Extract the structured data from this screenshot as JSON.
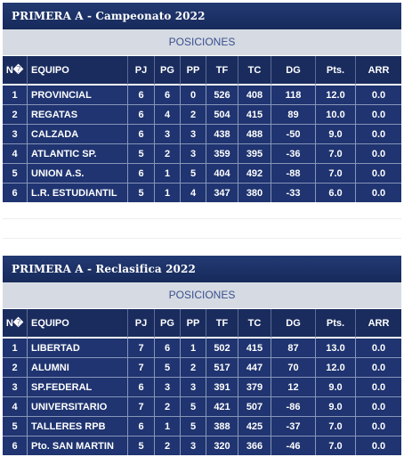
{
  "tables": [
    {
      "title": "PRIMERA A - Campeonato 2022",
      "section": "POSICIONES",
      "headers": [
        "N�",
        "EQUIPO",
        "PJ",
        "PG",
        "PP",
        "TF",
        "TC",
        "DG",
        "Pts.",
        "ARR"
      ],
      "rows": [
        [
          "1",
          "PROVINCIAL",
          "6",
          "6",
          "0",
          "526",
          "408",
          "118",
          "12.0",
          "0.0"
        ],
        [
          "2",
          "REGATAS",
          "6",
          "4",
          "2",
          "504",
          "415",
          "89",
          "10.0",
          "0.0"
        ],
        [
          "3",
          "CALZADA",
          "6",
          "3",
          "3",
          "438",
          "488",
          "-50",
          "9.0",
          "0.0"
        ],
        [
          "4",
          "ATLANTIC SP.",
          "5",
          "2",
          "3",
          "359",
          "395",
          "-36",
          "7.0",
          "0.0"
        ],
        [
          "5",
          "UNION A.S.",
          "6",
          "1",
          "5",
          "404",
          "492",
          "-88",
          "7.0",
          "0.0"
        ],
        [
          "6",
          "L.R. ESTUDIANTIL",
          "5",
          "1",
          "4",
          "347",
          "380",
          "-33",
          "6.0",
          "0.0"
        ]
      ]
    },
    {
      "title": "PRIMERA A - Reclasifica 2022",
      "section": "POSICIONES",
      "headers": [
        "N�",
        "EQUIPO",
        "PJ",
        "PG",
        "PP",
        "TF",
        "TC",
        "DG",
        "Pts.",
        "ARR"
      ],
      "rows": [
        [
          "1",
          "LIBERTAD",
          "7",
          "6",
          "1",
          "502",
          "415",
          "87",
          "13.0",
          "0.0"
        ],
        [
          "2",
          "ALUMNI",
          "7",
          "5",
          "2",
          "517",
          "447",
          "70",
          "12.0",
          "0.0"
        ],
        [
          "3",
          "SP.FEDERAL",
          "6",
          "3",
          "3",
          "391",
          "379",
          "12",
          "9.0",
          "0.0"
        ],
        [
          "4",
          "UNIVERSITARIO",
          "7",
          "2",
          "5",
          "421",
          "507",
          "-86",
          "9.0",
          "0.0"
        ],
        [
          "5",
          "TALLERES RPB",
          "6",
          "1",
          "5",
          "388",
          "425",
          "-37",
          "7.0",
          "0.0"
        ],
        [
          "6",
          "Pto. SAN MARTIN",
          "5",
          "2",
          "3",
          "320",
          "366",
          "-46",
          "7.0",
          "0.0"
        ]
      ]
    }
  ]
}
